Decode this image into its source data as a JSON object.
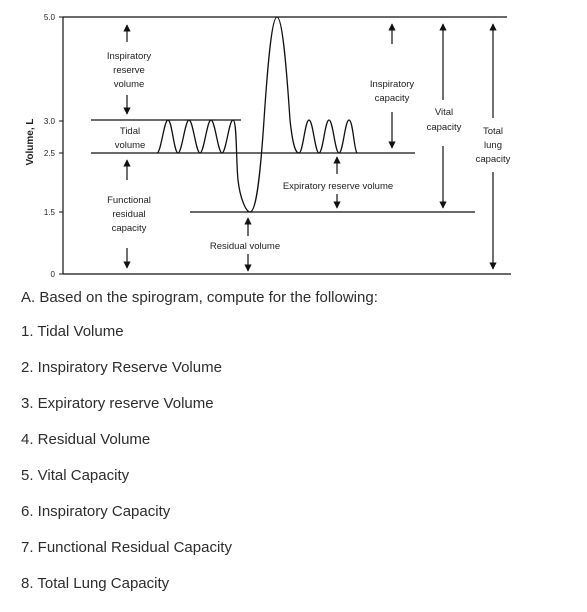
{
  "diagram": {
    "y_axis_label": "Volume, L",
    "ticks": [
      "5.0",
      "3.0",
      "2.5",
      "1.5",
      "0"
    ],
    "labels": {
      "irv": [
        "Inspiratory",
        "reserve",
        "volume"
      ],
      "tidal": [
        "Tidal",
        "volume"
      ],
      "frc": [
        "Functional",
        "residual",
        "capacity"
      ],
      "ic": [
        "Inspiratory",
        "capacity"
      ],
      "vc": [
        "Vital",
        "capacity"
      ],
      "tlc": [
        "Total",
        "lung",
        "capacity"
      ],
      "erv": "Expiratory reserve volume",
      "rv": "Residual volume"
    },
    "line_color": "#111111"
  },
  "question": {
    "prompt": "A. Based on the spirogram, compute for the following:",
    "items": [
      "1. Tidal Volume",
      "2. Inspiratory Reserve Volume",
      "3. Expiratory reserve Volume",
      "4. Residual Volume",
      "5. Vital Capacity",
      "6. Inspiratory Capacity",
      "7. Functional Residual Capacity",
      "8. Total Lung Capacity"
    ]
  }
}
